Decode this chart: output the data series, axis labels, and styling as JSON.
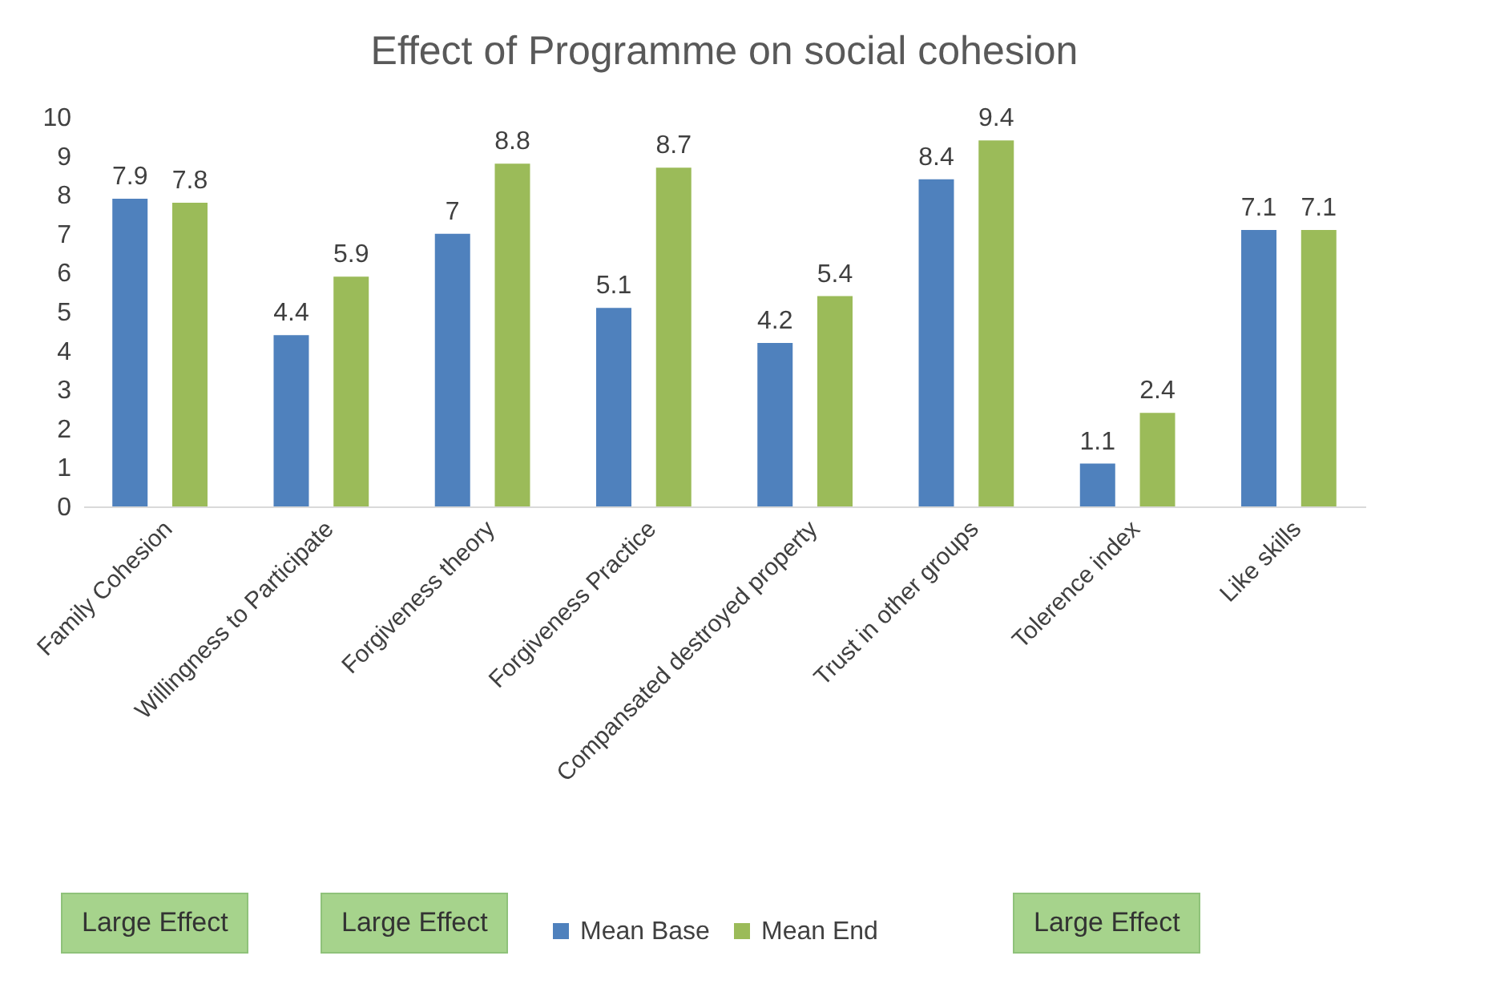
{
  "chart_data": {
    "type": "bar",
    "title": "Effect of Programme on social cohesion",
    "categories": [
      "Family Cohesion",
      "Willingness to  Participate",
      "Forgiveness theory",
      "Forgiveness Practice",
      "Compansated destroyed property",
      "Trust in other groups",
      "Tolerence index",
      "Like skills"
    ],
    "series": [
      {
        "name": "Mean Base",
        "color": "#4f81bd",
        "values": [
          7.9,
          4.4,
          7,
          5.1,
          4.2,
          8.4,
          1.1,
          7.1
        ]
      },
      {
        "name": "Mean End",
        "color": "#9bbb59",
        "values": [
          7.8,
          5.9,
          8.8,
          8.7,
          5.4,
          9.4,
          2.4,
          7.1
        ]
      }
    ],
    "ylim": [
      0,
      10
    ],
    "yticks": [
      0,
      1,
      2,
      3,
      4,
      5,
      6,
      7,
      8,
      9,
      10
    ],
    "grid": false,
    "legend": "bottom",
    "data_labels": true,
    "annotations": [
      "Large Effect",
      "Large Effect",
      "Large Effect"
    ]
  }
}
